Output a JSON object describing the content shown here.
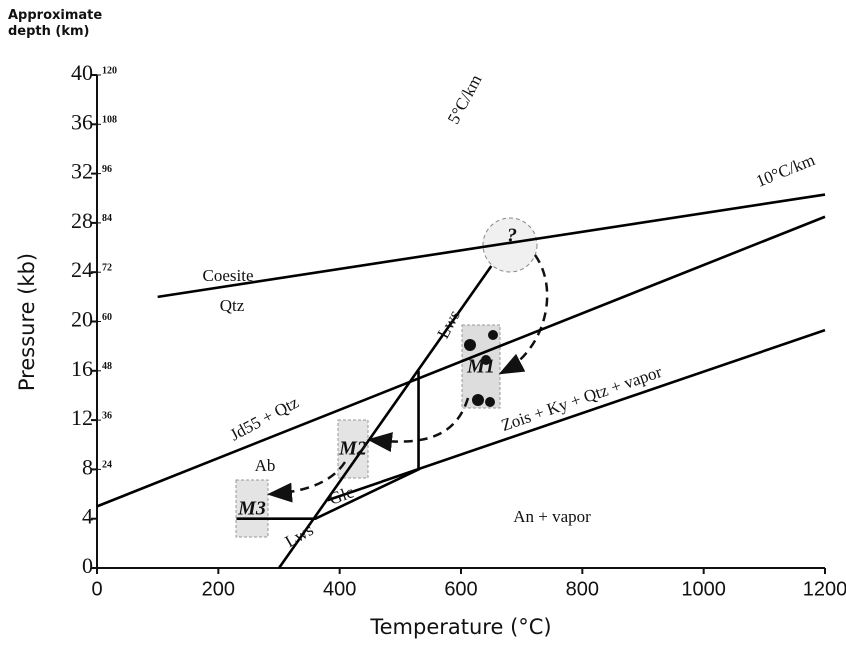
{
  "chart_data": {
    "type": "line",
    "xlabel": "Temperature (°C)",
    "ylabel": "Pressure (kb)",
    "y2label": "Approximate depth (km)",
    "xlim": [
      0,
      1200
    ],
    "xticks": [
      0,
      200,
      400,
      600,
      800,
      1000,
      1200
    ],
    "ylim": [
      0,
      40
    ],
    "yticks": [
      0,
      4,
      8,
      12,
      16,
      20,
      24,
      28,
      32,
      36,
      40
    ],
    "y2lim": [
      0,
      120
    ],
    "y2ticks": [
      24,
      36,
      48,
      60,
      72,
      84,
      96,
      108,
      120
    ],
    "grid": false,
    "series": [
      {
        "color": "#000000",
        "x": [
          100,
          1200
        ],
        "values": [
          22,
          30.3
        ]
      },
      {
        "color": "#000000",
        "x": [
          0,
          1200
        ],
        "values": [
          5,
          28.5
        ]
      },
      {
        "color": "#000000",
        "x": [
          380,
          1200
        ],
        "values": [
          5.5,
          19.3
        ]
      },
      {
        "color": "#000000",
        "x": [
          300,
          650
        ],
        "values": [
          0,
          24.5
        ]
      },
      {
        "color": "#000000",
        "x": [
          230,
          360,
          530,
          530
        ],
        "values": [
          4,
          4,
          8,
          16
        ]
      }
    ],
    "annotations": [
      "5°C/km",
      "10°C/km",
      "Coesite",
      "Qtz",
      "Lws",
      "Lws",
      "Jd55 + Qtz",
      "Ab",
      "Glc",
      "Zois + Ky + Qtz + vapor",
      "An + vapor",
      "?",
      "M1",
      "M2",
      "M3"
    ]
  }
}
